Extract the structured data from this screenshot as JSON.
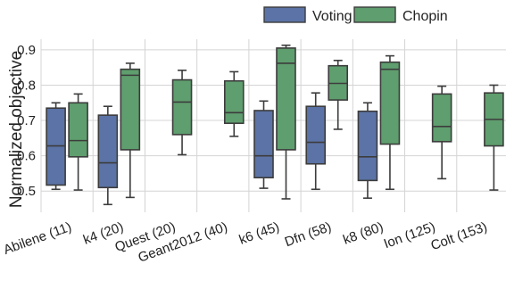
{
  "chart_data": {
    "type": "box",
    "title": "",
    "xlabel": "",
    "ylabel": "Normalized objective",
    "ylim": [
      0.44,
      0.93
    ],
    "yticks": [
      "0.5",
      "0.6",
      "0.7",
      "0.8",
      "0.9"
    ],
    "grid": true,
    "legend_position": "top-right",
    "categories": [
      "Abilene (11)",
      "k4 (20)",
      "Quest (20)",
      "Geant2012 (40)",
      "k6 (45)",
      "Dfn (58)",
      "k8 (80)",
      "Ion (125)",
      "Colt (153)"
    ],
    "series": [
      {
        "name": "Voting",
        "color": "#5b73a6",
        "boxes": [
          {
            "min": 0.505,
            "q1": 0.517,
            "median": 0.628,
            "q3": 0.735,
            "max": 0.75
          },
          {
            "min": 0.462,
            "q1": 0.51,
            "median": 0.58,
            "q3": 0.715,
            "max": 0.74
          },
          null,
          null,
          {
            "min": 0.508,
            "q1": 0.538,
            "median": 0.6,
            "q3": 0.728,
            "max": 0.755
          },
          {
            "min": 0.505,
            "q1": 0.577,
            "median": 0.638,
            "q3": 0.74,
            "max": 0.778
          },
          {
            "min": 0.48,
            "q1": 0.53,
            "median": 0.597,
            "q3": 0.726,
            "max": 0.75
          },
          null,
          null
        ]
      },
      {
        "name": "Chopin",
        "color": "#5f9e6e",
        "boxes": [
          {
            "min": 0.503,
            "q1": 0.597,
            "median": 0.643,
            "q3": 0.75,
            "max": 0.775
          },
          {
            "min": 0.482,
            "q1": 0.617,
            "median": 0.828,
            "q3": 0.845,
            "max": 0.862
          },
          {
            "min": 0.603,
            "q1": 0.66,
            "median": 0.752,
            "q3": 0.815,
            "max": 0.842
          },
          {
            "min": 0.655,
            "q1": 0.692,
            "median": 0.722,
            "q3": 0.812,
            "max": 0.838
          },
          {
            "min": 0.478,
            "q1": 0.617,
            "median": 0.862,
            "q3": 0.905,
            "max": 0.913
          },
          {
            "min": 0.675,
            "q1": 0.758,
            "median": 0.805,
            "q3": 0.855,
            "max": 0.87
          },
          {
            "min": 0.505,
            "q1": 0.633,
            "median": 0.845,
            "q3": 0.865,
            "max": 0.883
          },
          {
            "min": 0.535,
            "q1": 0.64,
            "median": 0.683,
            "q3": 0.775,
            "max": 0.797
          },
          {
            "min": 0.503,
            "q1": 0.628,
            "median": 0.703,
            "q3": 0.778,
            "max": 0.8
          }
        ]
      }
    ]
  }
}
